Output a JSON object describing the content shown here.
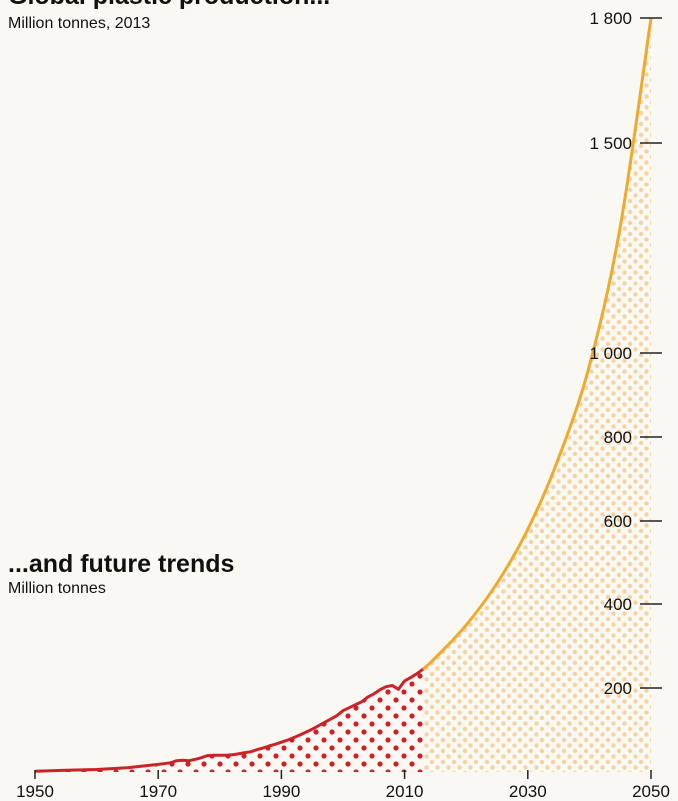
{
  "header": {
    "title": "Global plastic production...",
    "subtitle": "Million tonnes, 2013"
  },
  "lower_header": {
    "title": "...and future trends",
    "subtitle": "Million tonnes"
  },
  "colors": {
    "historical": "#cc2229",
    "projection": "#eeaa2e",
    "projection_dots": "#f3d3a1",
    "historical_dots": "#cc2229",
    "background": "#f9f8f2"
  },
  "chart_data": {
    "type": "area",
    "xlim": [
      1950,
      2050
    ],
    "ylim": [
      0,
      1900
    ],
    "x_ticks": [
      1950,
      1970,
      1990,
      2010,
      2030,
      2050
    ],
    "x_tick_labels": [
      "1950",
      "1970",
      "1990",
      "2010",
      "2030",
      "2050"
    ],
    "y_ticks": [
      200,
      400,
      600,
      800,
      1000,
      1500,
      1800
    ],
    "y_tick_labels": [
      "200",
      "400",
      "600",
      "800",
      "1 000",
      "1 500",
      "1 800"
    ],
    "grid": false,
    "series": [
      {
        "key": "historical",
        "x": [
          1950,
          1955,
          1960,
          1965,
          1970,
          1972,
          1973,
          1974,
          1975,
          1976,
          1977,
          1978,
          1979,
          1980,
          1981,
          1982,
          1983,
          1984,
          1985,
          1986,
          1987,
          1988,
          1989,
          1990,
          1991,
          1992,
          1993,
          1994,
          1995,
          1996,
          1997,
          1998,
          1999,
          2000,
          2001,
          2002,
          2003,
          2004,
          2005,
          2006,
          2007,
          2008,
          2009,
          2010,
          2011,
          2012,
          2013
        ],
        "y": [
          2,
          4,
          6,
          10,
          18,
          22,
          27,
          28,
          27,
          30,
          34,
          39,
          40,
          40,
          40,
          41,
          43,
          46,
          48,
          53,
          57,
          62,
          66,
          71,
          76,
          82,
          88,
          95,
          102,
          110,
          118,
          126,
          134,
          146,
          153,
          160,
          167,
          178,
          186,
          196,
          203,
          206,
          197,
          217,
          225,
          234,
          245
        ]
      },
      {
        "key": "projection",
        "x": [
          2013,
          2015,
          2020,
          2025,
          2030,
          2035,
          2040,
          2045,
          2050
        ],
        "y": [
          245,
          272,
          350,
          450,
          580,
          750,
          970,
          1300,
          1800
        ]
      }
    ]
  }
}
